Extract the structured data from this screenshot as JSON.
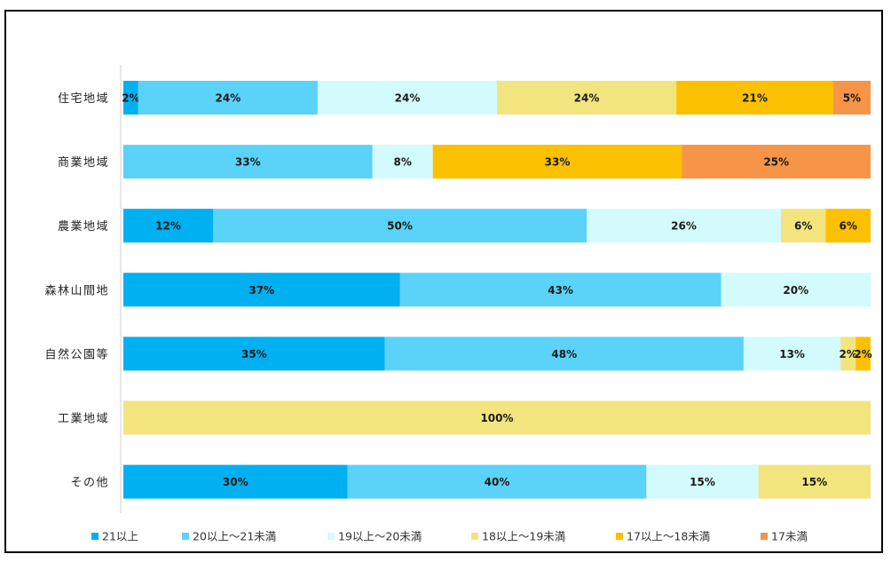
{
  "chart_data": {
    "type": "bar",
    "orientation": "horizontal",
    "stacked": "percent",
    "categories": [
      "住宅地域",
      "商業地域",
      "農業地域",
      "森林山間地",
      "自然公園等",
      "工業地域",
      "その他"
    ],
    "series": [
      {
        "name": "21以上",
        "color": "#00b0f0",
        "values": [
          2,
          0,
          12,
          37,
          35,
          0,
          30
        ]
      },
      {
        "name": "20以上～21未満",
        "color": "#5bd2f8",
        "values": [
          24,
          33,
          50,
          43,
          48,
          0,
          40
        ]
      },
      {
        "name": "19以上～20未満",
        "color": "#d3fbfd",
        "values": [
          24,
          8,
          26,
          20,
          13,
          0,
          15
        ]
      },
      {
        "name": "18以上～19未満",
        "color": "#f2e57e",
        "values": [
          24,
          0,
          6,
          0,
          2,
          100,
          15
        ]
      },
      {
        "name": "17以上～18未満",
        "color": "#fbc000",
        "values": [
          21,
          33,
          6,
          0,
          2,
          0,
          0
        ]
      },
      {
        "name": "17未満",
        "color": "#f69547",
        "values": [
          5,
          25,
          0,
          0,
          0,
          0,
          0
        ]
      }
    ],
    "data_labels": [
      [
        "2%",
        "24%",
        "24%",
        "24%",
        "21%",
        "5%"
      ],
      [
        "",
        "33%",
        "8%",
        "",
        "33%",
        "25%"
      ],
      [
        "12%",
        "50%",
        "26%",
        "6%",
        "6%",
        ""
      ],
      [
        "37%",
        "43%",
        "20%",
        "",
        "",
        ""
      ],
      [
        "35%",
        "48%",
        "13%",
        "2%",
        "2%",
        ""
      ],
      [
        "",
        "",
        "",
        "100%",
        "",
        ""
      ],
      [
        "30%",
        "40%",
        "15%",
        "15%",
        "",
        ""
      ]
    ],
    "xlim": [
      0,
      100
    ],
    "grid": false,
    "legend_position": "bottom",
    "title": "",
    "xlabel": "",
    "ylabel": ""
  }
}
